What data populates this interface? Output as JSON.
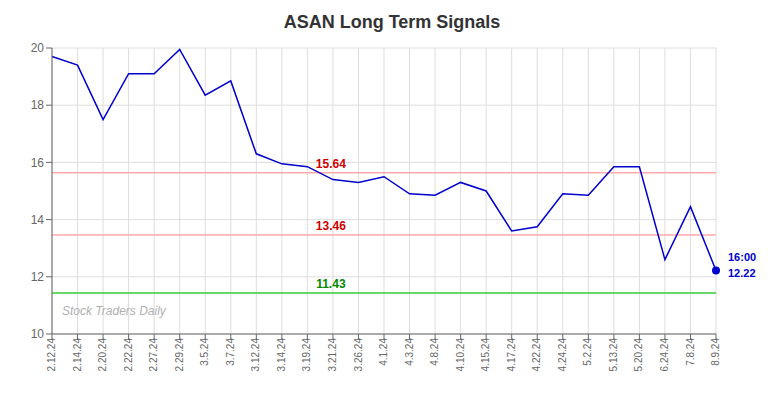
{
  "chart_data": {
    "type": "line",
    "title": "ASAN Long Term Signals",
    "watermark": "Stock Traders Daily",
    "categories": [
      "2.12.24",
      "2.14.24",
      "2.20.24",
      "2.22.24",
      "2.27.24",
      "2.29.24",
      "3.5.24",
      "3.7.24",
      "3.12.24",
      "3.14.24",
      "3.19.24",
      "3.21.24",
      "3.26.24",
      "4.1.24",
      "4.3.24",
      "4.8.24",
      "4.10.24",
      "4.15.24",
      "4.17.24",
      "4.22.24",
      "4.24.24",
      "5.2.24",
      "5.13.24",
      "5.20.24",
      "6.24.24",
      "7.8.24",
      "8.9.24"
    ],
    "values": [
      19.7,
      19.4,
      17.5,
      19.1,
      19.1,
      19.95,
      18.35,
      18.85,
      16.3,
      15.95,
      15.85,
      15.4,
      15.3,
      15.5,
      14.9,
      14.85,
      15.3,
      15.0,
      13.6,
      13.75,
      14.9,
      14.85,
      15.85,
      15.85,
      12.6,
      14.45,
      12.22
    ],
    "color": "#0000cc",
    "marker": "last",
    "hlines": [
      {
        "value": 15.64,
        "label": "15.64",
        "color": "#ffaaaa",
        "label_color": "#cc0000"
      },
      {
        "value": 13.46,
        "label": "13.46",
        "color": "#ffaaaa",
        "label_color": "#cc0000"
      },
      {
        "value": 11.43,
        "label": "11.43",
        "color": "#33cc33",
        "label_color": "#008800"
      }
    ],
    "annotations": [
      "16:00",
      "12.22"
    ],
    "ylim": [
      10,
      20
    ],
    "yticks": [
      10,
      12,
      14,
      16,
      18,
      20
    ],
    "grid": true
  }
}
